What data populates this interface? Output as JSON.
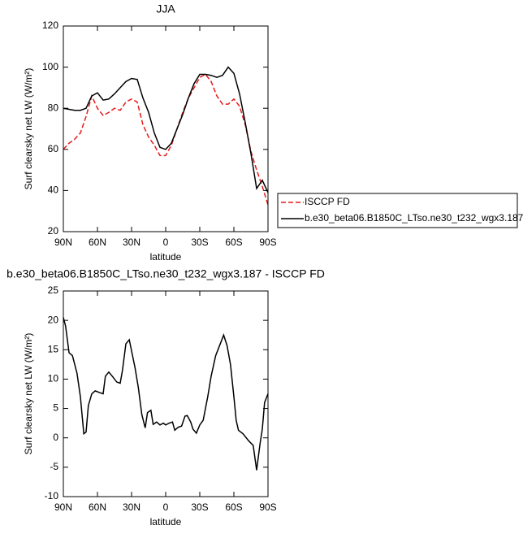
{
  "chart_data": [
    {
      "type": "line",
      "title": "JJA",
      "xlabel": "latitude",
      "ylabel": "Surf clearsky net LW (W/m²)",
      "x": [
        90,
        85,
        80,
        75,
        70,
        65,
        60,
        55,
        50,
        45,
        40,
        35,
        30,
        25,
        20,
        15,
        10,
        5,
        0,
        -5,
        -10,
        -15,
        -20,
        -25,
        -30,
        -35,
        -40,
        -45,
        -50,
        -55,
        -60,
        -65,
        -70,
        -75,
        -80,
        -85,
        -90
      ],
      "series": [
        {
          "name": "ISCCP FD",
          "color": "#e41a1c",
          "dashed": true,
          "values": [
            60,
            63,
            65,
            68,
            76,
            86,
            80,
            76.5,
            78,
            80,
            79,
            83,
            84.5,
            83,
            72,
            66,
            62,
            57,
            57,
            62,
            70,
            78,
            85,
            90,
            95,
            96.5,
            93,
            86,
            82,
            82,
            84.5,
            81,
            72,
            59,
            50,
            42,
            33
          ]
        },
        {
          "name": "b.e30_beta06.B1850C_LTso.ne30_t232_wgx3.187",
          "color": "#000000",
          "dashed": false,
          "values": [
            80,
            79.5,
            79,
            79,
            80,
            86,
            87.5,
            84,
            84.5,
            87,
            90,
            93,
            94.5,
            94,
            85,
            78,
            68,
            61,
            60,
            63,
            70,
            77,
            85,
            92,
            96.5,
            96.5,
            96,
            95,
            96,
            100,
            97,
            87,
            73,
            58,
            41,
            45,
            39
          ]
        }
      ],
      "xlim": [
        90,
        -90
      ],
      "xticks": [
        {
          "value": 90,
          "label": "90N"
        },
        {
          "value": 60,
          "label": "60N"
        },
        {
          "value": 30,
          "label": "30N"
        },
        0,
        {
          "value": -30,
          "label": "30S"
        },
        {
          "value": -60,
          "label": "60S"
        },
        {
          "value": -90,
          "label": "90S"
        }
      ],
      "ylim": [
        20,
        120
      ],
      "yticks": [
        20,
        40,
        60,
        80,
        100,
        120
      ],
      "legend": "right"
    },
    {
      "type": "line",
      "title": "b.e30_beta06.B1850C_LTso.ne30_t232_wgx3.187 - ISCCP FD",
      "xlabel": "latitude",
      "ylabel": "Surf clearsky net LW (W/m²)",
      "x": [
        90,
        88,
        85,
        82,
        78,
        75,
        72,
        70,
        68,
        65,
        62,
        58,
        55,
        53,
        50,
        47,
        43,
        40,
        38,
        35,
        32,
        30,
        27,
        24,
        21,
        18,
        16,
        13,
        11,
        8,
        5,
        2,
        0,
        -3,
        -6,
        -8,
        -11,
        -14,
        -17,
        -19,
        -22,
        -24,
        -27,
        -30,
        -33,
        -37,
        -40,
        -44,
        -48,
        -51,
        -54,
        -57,
        -60,
        -62,
        -64,
        -68,
        -73,
        -77,
        -80,
        -83,
        -85,
        -87,
        -90
      ],
      "series": [
        {
          "color": "#000000",
          "dashed": false,
          "values": [
            20.5,
            19,
            14.5,
            14,
            11,
            7,
            0.7,
            1,
            5.5,
            7.5,
            8,
            7.7,
            7.5,
            10.5,
            11.2,
            10.5,
            9.5,
            9.3,
            11.5,
            16,
            16.7,
            14.8,
            12,
            8.5,
            4,
            1.7,
            4.3,
            4.7,
            2.3,
            2.7,
            2.2,
            2.5,
            2.2,
            2.5,
            2.7,
            1.3,
            1.8,
            2,
            3.7,
            3.8,
            2.7,
            1.5,
            0.8,
            2.2,
            3,
            7,
            10.5,
            14,
            16,
            17.5,
            15.7,
            12.5,
            7,
            3,
            1.3,
            0.7,
            -0.5,
            -1.3,
            -5.5,
            -1,
            1.5,
            6,
            7.5
          ]
        }
      ],
      "xlim": [
        90,
        -90
      ],
      "xticks": [
        {
          "value": 90,
          "label": "90N"
        },
        {
          "value": 60,
          "label": "60N"
        },
        {
          "value": 30,
          "label": "30N"
        },
        0,
        {
          "value": -30,
          "label": "30S"
        },
        {
          "value": -60,
          "label": "60S"
        },
        {
          "value": -90,
          "label": "90S"
        }
      ],
      "ylim": [
        -10,
        25
      ],
      "yticks": [
        -10,
        -5,
        0,
        5,
        10,
        15,
        20,
        25
      ]
    }
  ]
}
